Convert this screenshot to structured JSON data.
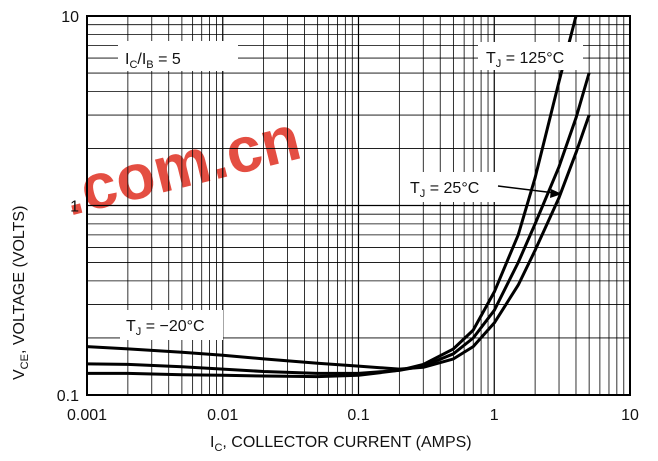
{
  "chart_data": {
    "type": "line",
    "x_scale": "log",
    "y_scale": "log",
    "xlim": [
      0.001,
      10
    ],
    "ylim": [
      0.1,
      10
    ],
    "grid": true,
    "x_ticks": [
      "0.001",
      "0.01",
      "0.1",
      "1",
      "10"
    ],
    "y_ticks": [
      "0.1",
      "1",
      "10"
    ],
    "xlabel": {
      "main": "I",
      "sub": "C",
      "rest": ", COLLECTOR CURRENT (AMPS)"
    },
    "ylabel": {
      "main": "V",
      "sub": "CE",
      "rest": ", VOLTAGE (VOLTS)"
    },
    "annotations": {
      "ratio": {
        "a": "I",
        "a_sub": "C",
        "slash": "/I",
        "b_sub": "B",
        "rest": " = 5"
      },
      "tj_125": {
        "main": "T",
        "sub": "J",
        "rest": " = 125°C"
      },
      "tj_25": {
        "main": "T",
        "sub": "J",
        "rest": " = 25°C"
      },
      "tj_m20": {
        "main": "T",
        "sub": "J",
        "rest": " = −20°C"
      }
    },
    "watermark": ".com.cn",
    "series": [
      {
        "x": [
          0.001,
          0.002,
          0.005,
          0.01,
          0.02,
          0.05,
          0.1,
          0.2,
          0.3,
          0.5,
          0.7,
          1.0,
          1.5,
          2.0,
          3.0,
          4.0
        ],
        "y": [
          0.13,
          0.13,
          0.128,
          0.127,
          0.126,
          0.125,
          0.127,
          0.135,
          0.145,
          0.175,
          0.22,
          0.35,
          0.7,
          1.4,
          4.5,
          10
        ]
      },
      {
        "x": [
          0.001,
          0.002,
          0.005,
          0.01,
          0.02,
          0.05,
          0.1,
          0.2,
          0.3,
          0.5,
          0.7,
          1.0,
          1.5,
          2.0,
          3.0,
          4.0,
          5.0
        ],
        "y": [
          0.146,
          0.145,
          0.141,
          0.137,
          0.133,
          0.13,
          0.13,
          0.135,
          0.142,
          0.165,
          0.2,
          0.28,
          0.5,
          0.8,
          1.6,
          2.9,
          5.0
        ]
      },
      {
        "x": [
          0.001,
          0.002,
          0.005,
          0.01,
          0.02,
          0.05,
          0.1,
          0.2,
          0.3,
          0.5,
          0.7,
          1.0,
          1.5,
          2.0,
          3.0,
          4.0,
          5.0
        ],
        "y": [
          0.18,
          0.175,
          0.168,
          0.162,
          0.155,
          0.147,
          0.142,
          0.137,
          0.14,
          0.155,
          0.18,
          0.24,
          0.38,
          0.58,
          1.1,
          1.9,
          3.0
        ]
      }
    ]
  }
}
